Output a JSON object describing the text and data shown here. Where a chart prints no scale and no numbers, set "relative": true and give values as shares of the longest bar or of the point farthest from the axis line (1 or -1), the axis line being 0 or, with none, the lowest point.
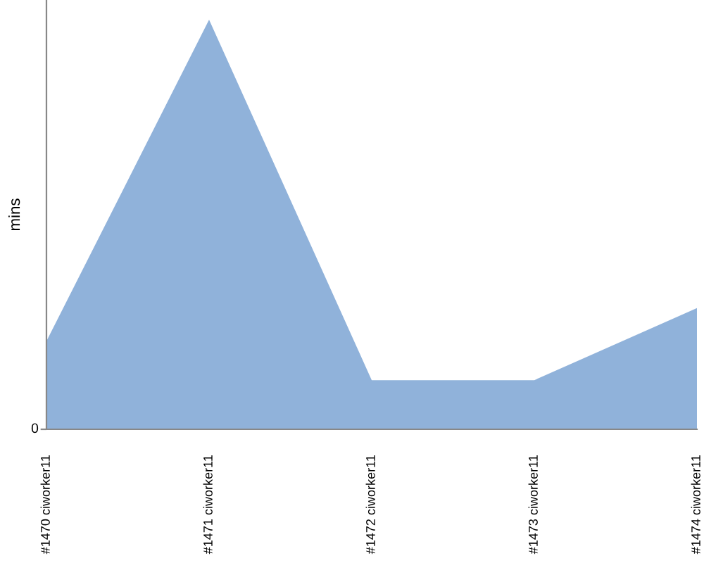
{
  "chart_data": {
    "type": "area",
    "relative": true,
    "ylabel": "mins",
    "categories": [
      "#1470 ciworker11",
      "#1471 ciworker11",
      "#1472 ciworker11",
      "#1473 ciworker11",
      "#1474 ciworker11"
    ],
    "values": [
      0.215,
      1,
      0.12,
      0.12,
      0.296
    ],
    "color": "#90b2da",
    "annotations": [
      "0"
    ]
  }
}
